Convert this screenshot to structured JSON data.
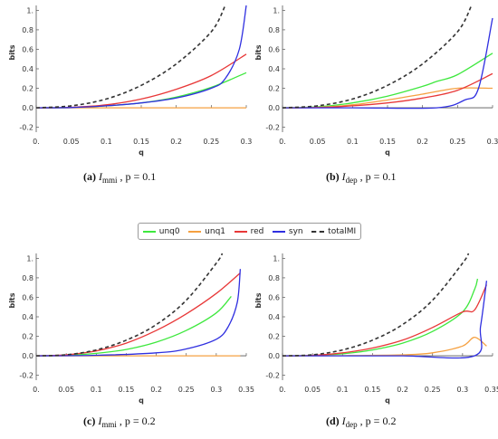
{
  "legend": [
    {
      "key": "unq0",
      "label": "unq0",
      "color": "#3ee83e",
      "dash": false
    },
    {
      "key": "unq1",
      "label": "unq1",
      "color": "#f5a040",
      "dash": false
    },
    {
      "key": "red",
      "label": "red",
      "color": "#e83838",
      "dash": false
    },
    {
      "key": "syn",
      "label": "syn",
      "color": "#2f2fe0",
      "dash": false
    },
    {
      "key": "totalMI",
      "label": "totalMI",
      "color": "#333333",
      "dash": true
    }
  ],
  "captions": [
    {
      "tag": "(a)",
      "sym": "I",
      "sub": "mmi",
      "rest": ", p = 0.1"
    },
    {
      "tag": "(b)",
      "sym": "I",
      "sub": "dep",
      "rest": ", p = 0.1"
    },
    {
      "tag": "(c)",
      "sym": "I",
      "sub": "mmi",
      "rest": ", p = 0.2"
    },
    {
      "tag": "(d)",
      "sym": "I",
      "sub": "dep",
      "rest": ", p = 0.2"
    }
  ],
  "chart_data": [
    {
      "type": "line",
      "xlabel": "q",
      "ylabel": "bits",
      "xlim": [
        0,
        0.3
      ],
      "ylim": [
        -0.25,
        1.05
      ],
      "xticks": [
        0,
        0.05,
        0.1,
        0.15,
        0.2,
        0.25,
        0.3
      ],
      "xtick_labels": [
        "0.",
        "0.05",
        "0.1",
        "0.15",
        "0.2",
        "0.25",
        "0.3"
      ],
      "yticks": [
        -0.2,
        0,
        0.2,
        0.4,
        0.6,
        0.8,
        1.0
      ],
      "ytick_labels": [
        "-0.2",
        "0.0",
        "0.2",
        "0.4",
        "0.6",
        "0.8",
        "1."
      ],
      "series": [
        {
          "key": "unq0",
          "x": [
            0,
            0.05,
            0.1,
            0.15,
            0.2,
            0.25,
            0.3
          ],
          "y": [
            0,
            0.003,
            0.02,
            0.05,
            0.11,
            0.21,
            0.36
          ]
        },
        {
          "key": "unq1",
          "x": [
            0,
            0.1,
            0.2,
            0.3
          ],
          "y": [
            0,
            0,
            0,
            0
          ]
        },
        {
          "key": "red",
          "x": [
            0,
            0.05,
            0.1,
            0.15,
            0.2,
            0.25,
            0.3
          ],
          "y": [
            0,
            0.005,
            0.03,
            0.09,
            0.19,
            0.33,
            0.55
          ]
        },
        {
          "key": "syn",
          "x": [
            0,
            0.05,
            0.1,
            0.15,
            0.2,
            0.25,
            0.27,
            0.29,
            0.3
          ],
          "y": [
            0,
            0.003,
            0.02,
            0.05,
            0.1,
            0.2,
            0.3,
            0.6,
            1.05
          ]
        },
        {
          "key": "totalMI",
          "x": [
            0,
            0.05,
            0.1,
            0.15,
            0.2,
            0.25,
            0.27
          ],
          "y": [
            0,
            0.02,
            0.09,
            0.23,
            0.45,
            0.78,
            1.05
          ]
        }
      ]
    },
    {
      "type": "line",
      "xlabel": "q",
      "ylabel": "bits",
      "xlim": [
        0,
        0.3
      ],
      "ylim": [
        -0.25,
        1.05
      ],
      "xticks": [
        0,
        0.05,
        0.1,
        0.15,
        0.2,
        0.25,
        0.3
      ],
      "xtick_labels": [
        "0.",
        "0.05",
        "0.1",
        "0.15",
        "0.2",
        "0.25",
        "0.3"
      ],
      "yticks": [
        -0.2,
        0,
        0.2,
        0.4,
        0.6,
        0.8,
        1.0
      ],
      "ytick_labels": [
        "-0.2",
        "0.0",
        "0.2",
        "0.4",
        "0.6",
        "0.8",
        "1."
      ],
      "series": [
        {
          "key": "unq0",
          "x": [
            0,
            0.05,
            0.1,
            0.15,
            0.2,
            0.22,
            0.25,
            0.3
          ],
          "y": [
            0,
            0.01,
            0.05,
            0.12,
            0.22,
            0.27,
            0.34,
            0.56
          ]
        },
        {
          "key": "unq1",
          "x": [
            0,
            0.05,
            0.1,
            0.15,
            0.2,
            0.25,
            0.3
          ],
          "y": [
            0,
            0.005,
            0.03,
            0.08,
            0.14,
            0.2,
            0.2
          ]
        },
        {
          "key": "red",
          "x": [
            0,
            0.05,
            0.1,
            0.15,
            0.2,
            0.25,
            0.3
          ],
          "y": [
            0,
            0.003,
            0.02,
            0.05,
            0.1,
            0.18,
            0.35
          ]
        },
        {
          "key": "syn",
          "x": [
            0,
            0.1,
            0.22,
            0.26,
            0.28,
            0.3
          ],
          "y": [
            0,
            0,
            0,
            0.08,
            0.2,
            0.92
          ]
        },
        {
          "key": "totalMI",
          "x": [
            0,
            0.05,
            0.1,
            0.15,
            0.2,
            0.25,
            0.27
          ],
          "y": [
            0,
            0.02,
            0.09,
            0.23,
            0.45,
            0.78,
            1.05
          ]
        }
      ]
    },
    {
      "type": "line",
      "xlabel": "q",
      "ylabel": "bits",
      "xlim": [
        0,
        0.35
      ],
      "ylim": [
        -0.25,
        1.05
      ],
      "xticks": [
        0,
        0.05,
        0.1,
        0.15,
        0.2,
        0.25,
        0.3,
        0.35
      ],
      "xtick_labels": [
        "0.",
        "0.05",
        "0.1",
        "0.15",
        "0.2",
        "0.25",
        "0.3",
        "0.35"
      ],
      "yticks": [
        -0.2,
        0,
        0.2,
        0.4,
        0.6,
        0.8,
        1.0
      ],
      "ytick_labels": [
        "-0.2",
        "0.0",
        "0.2",
        "0.4",
        "0.6",
        "0.8",
        "1."
      ],
      "series": [
        {
          "key": "unq0",
          "x": [
            0,
            0.05,
            0.1,
            0.15,
            0.2,
            0.25,
            0.3,
            0.325
          ],
          "y": [
            0,
            0.005,
            0.025,
            0.065,
            0.14,
            0.26,
            0.44,
            0.61
          ]
        },
        {
          "key": "unq1",
          "x": [
            0,
            0.1,
            0.2,
            0.34
          ],
          "y": [
            0,
            0,
            0,
            0
          ]
        },
        {
          "key": "red",
          "x": [
            0,
            0.05,
            0.1,
            0.15,
            0.2,
            0.25,
            0.3,
            0.34
          ],
          "y": [
            0,
            0.01,
            0.05,
            0.13,
            0.26,
            0.43,
            0.64,
            0.85
          ]
        },
        {
          "key": "syn",
          "x": [
            0,
            0.1,
            0.2,
            0.25,
            0.3,
            0.32,
            0.335,
            0.34
          ],
          "y": [
            0,
            0.005,
            0.03,
            0.07,
            0.17,
            0.3,
            0.55,
            0.89
          ]
        },
        {
          "key": "totalMI",
          "x": [
            0,
            0.05,
            0.1,
            0.15,
            0.2,
            0.25,
            0.3,
            0.31
          ],
          "y": [
            0,
            0.01,
            0.06,
            0.16,
            0.32,
            0.57,
            0.95,
            1.05
          ]
        }
      ]
    },
    {
      "type": "line",
      "xlabel": "q",
      "ylabel": "bits",
      "xlim": [
        0,
        0.35
      ],
      "ylim": [
        -0.25,
        1.05
      ],
      "xticks": [
        0,
        0.05,
        0.1,
        0.15,
        0.2,
        0.25,
        0.3,
        0.35
      ],
      "xtick_labels": [
        "0.",
        "0.05",
        "0.1",
        "0.15",
        "0.2",
        "0.25",
        "0.3",
        "0.35"
      ],
      "yticks": [
        -0.2,
        0,
        0.2,
        0.4,
        0.6,
        0.8,
        1.0
      ],
      "ytick_labels": [
        "-0.2",
        "0.0",
        "0.2",
        "0.4",
        "0.6",
        "0.8",
        "1."
      ],
      "series": [
        {
          "key": "unq0",
          "x": [
            0,
            0.05,
            0.1,
            0.15,
            0.2,
            0.25,
            0.3,
            0.32,
            0.325
          ],
          "y": [
            0,
            0.005,
            0.02,
            0.06,
            0.13,
            0.25,
            0.45,
            0.68,
            0.79
          ]
        },
        {
          "key": "unq1",
          "x": [
            0,
            0.1,
            0.2,
            0.25,
            0.3,
            0.32,
            0.34
          ],
          "y": [
            0,
            0.002,
            0.01,
            0.03,
            0.1,
            0.19,
            0.1
          ]
        },
        {
          "key": "red",
          "x": [
            0,
            0.05,
            0.1,
            0.15,
            0.2,
            0.25,
            0.3,
            0.32,
            0.34
          ],
          "y": [
            0,
            0.005,
            0.03,
            0.08,
            0.16,
            0.29,
            0.45,
            0.47,
            0.73
          ]
        },
        {
          "key": "syn",
          "x": [
            0,
            0.1,
            0.2,
            0.32,
            0.33,
            0.34
          ],
          "y": [
            0,
            0,
            0,
            0,
            0.3,
            0.77
          ]
        },
        {
          "key": "totalMI",
          "x": [
            0,
            0.05,
            0.1,
            0.15,
            0.2,
            0.25,
            0.3,
            0.31
          ],
          "y": [
            0,
            0.01,
            0.06,
            0.16,
            0.32,
            0.57,
            0.95,
            1.05
          ]
        }
      ]
    }
  ]
}
